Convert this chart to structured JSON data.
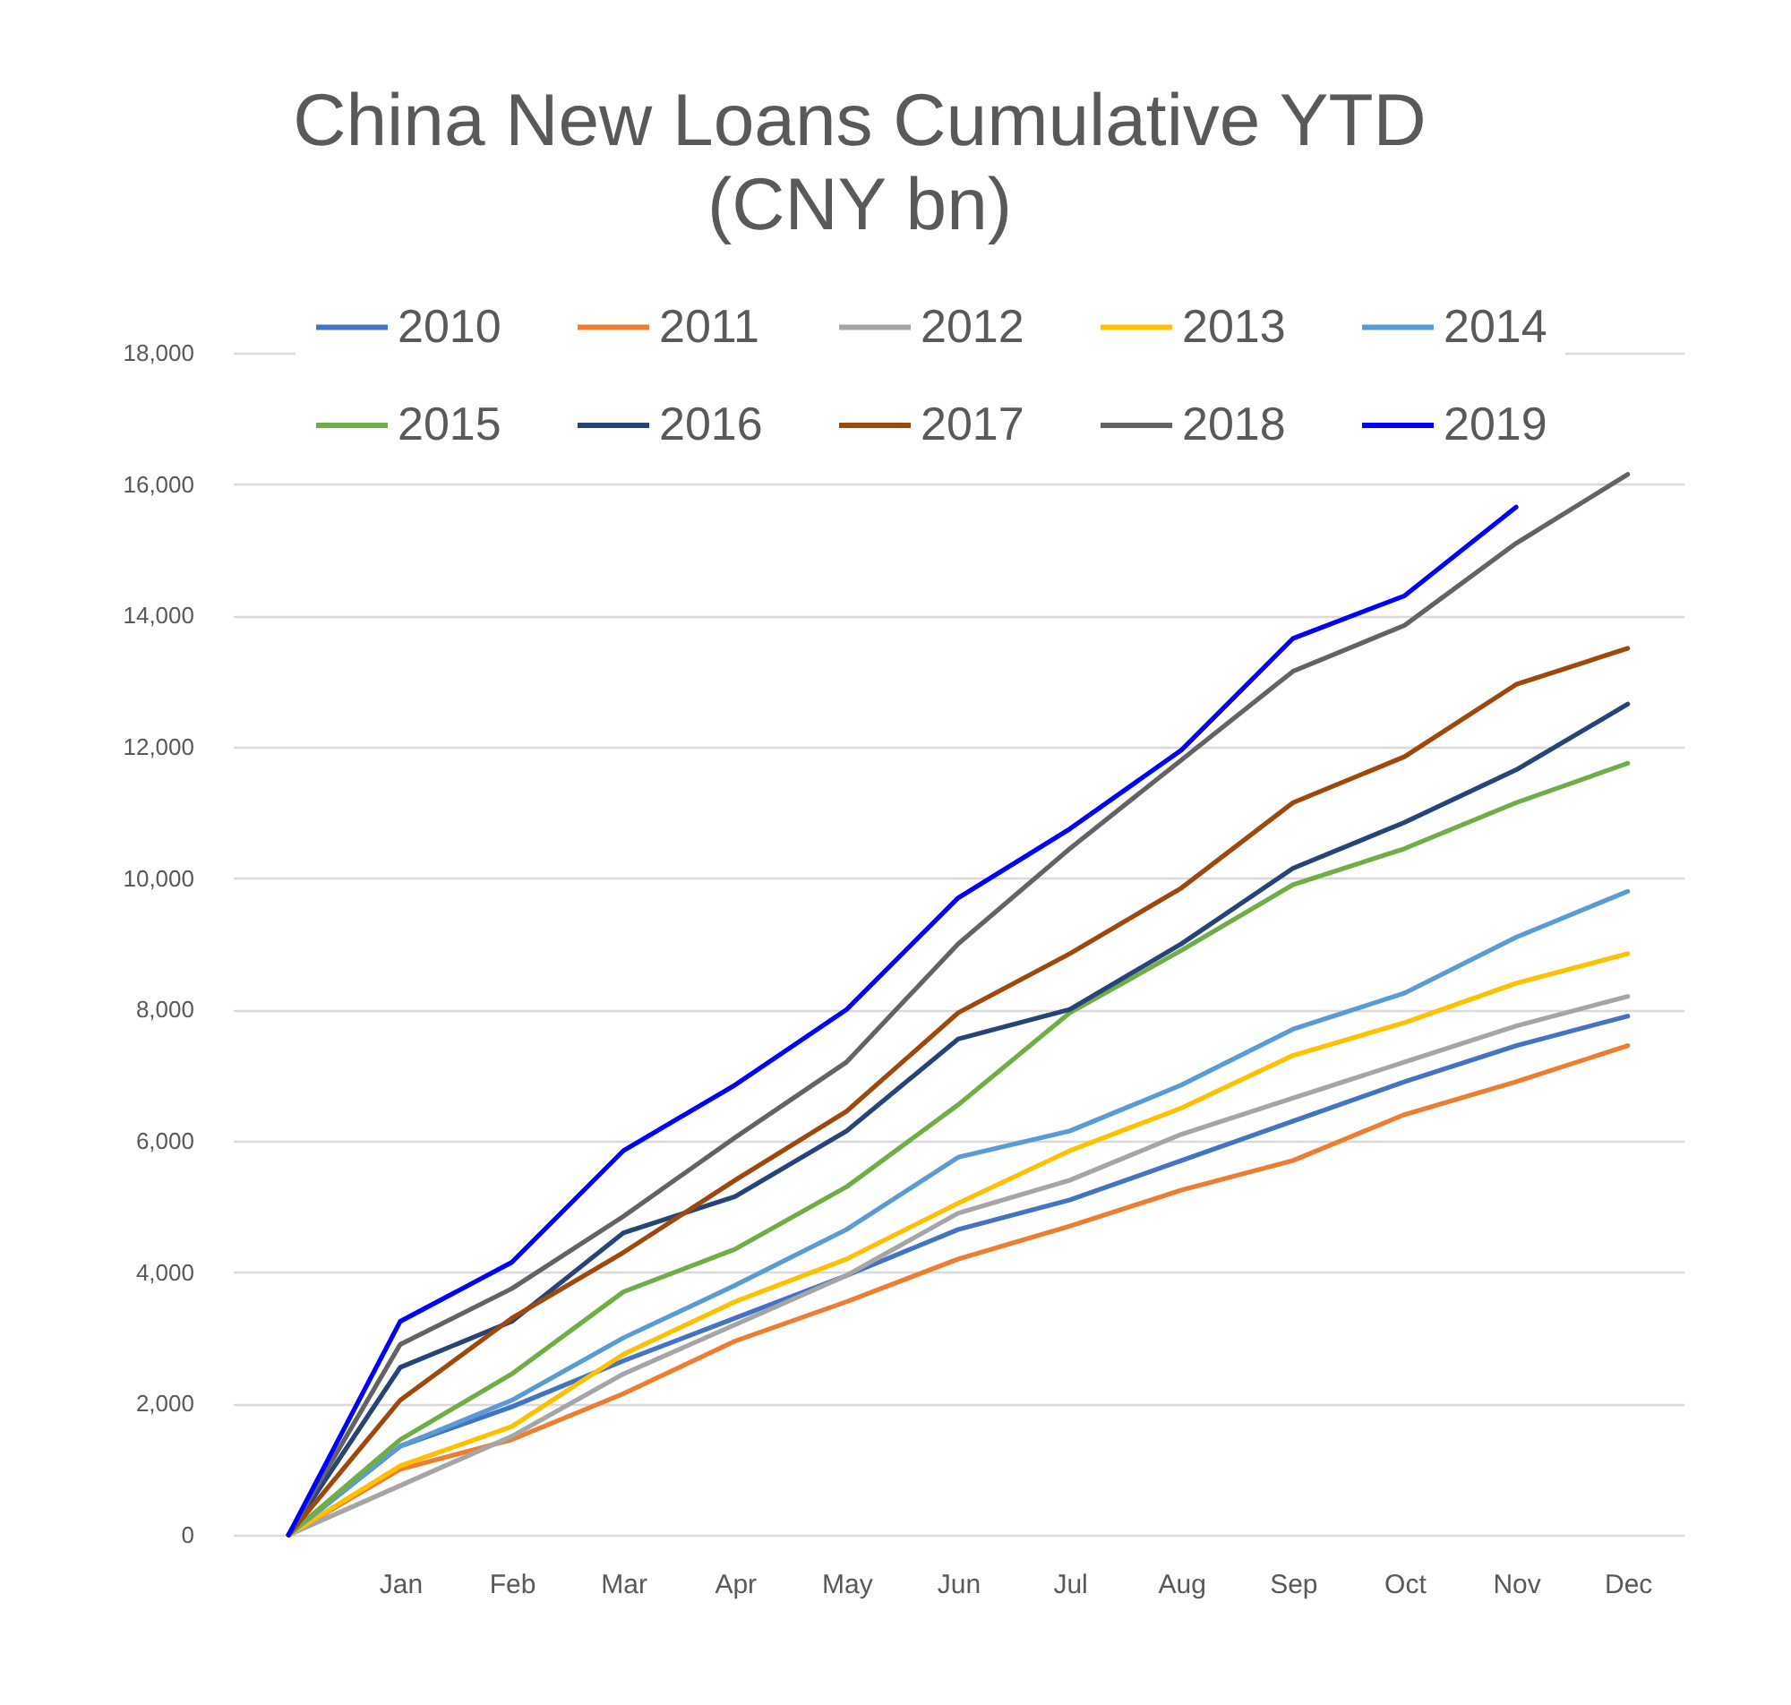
{
  "chart_data": {
    "type": "line",
    "title": "China New Loans Cumulative YTD",
    "subtitle": "(CNY bn)",
    "categories": [
      null,
      "Jan",
      "Feb",
      "Mar",
      "Apr",
      "May",
      "Jun",
      "Jul",
      "Aug",
      "Sep",
      "Oct",
      "Nov",
      "Dec"
    ],
    "series": [
      {
        "name": "2010",
        "color": "#4472c4",
        "values": [
          0,
          1350,
          1950,
          2650,
          3300,
          3950,
          4650,
          5100,
          5700,
          6300,
          6900,
          7450,
          7900
        ]
      },
      {
        "name": "2011",
        "color": "#ed7d31",
        "values": [
          0,
          1000,
          1450,
          2150,
          2950,
          3550,
          4200,
          4700,
          5250,
          5700,
          6400,
          6900,
          7450
        ]
      },
      {
        "name": "2012",
        "color": "#a5a5a5",
        "values": [
          0,
          750,
          1500,
          2450,
          3200,
          3950,
          4900,
          5400,
          6100,
          6650,
          7200,
          7750,
          8200
        ]
      },
      {
        "name": "2013",
        "color": "#ffc000",
        "values": [
          0,
          1050,
          1650,
          2750,
          3550,
          4200,
          5050,
          5850,
          6500,
          7300,
          7800,
          8400,
          8850
        ]
      },
      {
        "name": "2014",
        "color": "#5b9bd5",
        "values": [
          0,
          1350,
          2050,
          3000,
          3800,
          4650,
          5750,
          6150,
          6850,
          7700,
          8250,
          9100,
          9800
        ]
      },
      {
        "name": "2015",
        "color": "#70ad47",
        "values": [
          0,
          1450,
          2450,
          3700,
          4350,
          5300,
          6550,
          7950,
          8900,
          9900,
          10450,
          11150,
          11750
        ]
      },
      {
        "name": "2016",
        "color": "#264478",
        "values": [
          0,
          2550,
          3250,
          4600,
          5150,
          6150,
          7550,
          8000,
          9000,
          10150,
          10850,
          11650,
          12650
        ]
      },
      {
        "name": "2017",
        "color": "#9e480e",
        "values": [
          0,
          2050,
          3300,
          4300,
          5400,
          6450,
          7950,
          8850,
          9850,
          11150,
          11850,
          12950,
          13500
        ]
      },
      {
        "name": "2018",
        "color": "#636363",
        "values": [
          0,
          2900,
          3750,
          4850,
          6050,
          7200,
          9000,
          10450,
          11800,
          13150,
          13850,
          15100,
          16150
        ]
      },
      {
        "name": "2019",
        "color": "#0000ff",
        "values": [
          0,
          3250,
          4150,
          5850,
          6850,
          8000,
          9700,
          10750,
          11950,
          13650,
          14300,
          15650,
          null
        ]
      }
    ],
    "ylim": [
      0,
      18000
    ],
    "yticks": [
      0,
      {
        "value": 2000,
        "label": "2,000"
      },
      {
        "value": 4000,
        "label": "4,000"
      },
      {
        "value": 6000,
        "label": "6,000"
      },
      {
        "value": 8000,
        "label": "8,000"
      },
      {
        "value": 10000,
        "label": "10,000"
      },
      {
        "value": 12000,
        "label": "12,000"
      },
      {
        "value": 14000,
        "label": "14,000"
      },
      {
        "value": 16000,
        "label": "16,000"
      },
      {
        "value": 18000,
        "label": "18,000"
      }
    ],
    "grid": "y",
    "legend": "top"
  }
}
